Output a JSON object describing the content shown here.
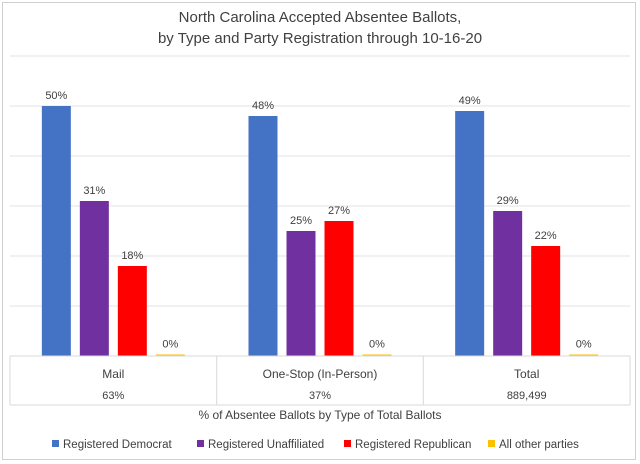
{
  "chart_data": {
    "type": "bar",
    "title": [
      "North Carolina Accepted Absentee Ballots,",
      "by Type and Party Registration through 10-16-20"
    ],
    "categories": [
      "Mail",
      "One-Stop (In-Person)",
      "Total"
    ],
    "category_sublabels": [
      "63%",
      "37%",
      "889,499"
    ],
    "xlabel": "% of Absentee Ballots by Type of Total Ballots",
    "ylabel": "",
    "ylim": [
      0,
      60
    ],
    "grid": true,
    "legend_position": "bottom",
    "series": [
      {
        "name": "Registered Democrat",
        "color": "#4472C4",
        "values": [
          50,
          48,
          49
        ],
        "labels": [
          "50%",
          "48%",
          "49%"
        ]
      },
      {
        "name": "Registered Unaffiliated",
        "color": "#7030A0",
        "values": [
          31,
          25,
          29
        ],
        "labels": [
          "31%",
          "25%",
          "29%"
        ]
      },
      {
        "name": "Registered Republican",
        "color": "#FF0000",
        "values": [
          18,
          27,
          22
        ],
        "labels": [
          "18%",
          "27%",
          "22%"
        ]
      },
      {
        "name": "All other parties",
        "color": "#FFC000",
        "values": [
          0.3,
          0.3,
          0.3
        ],
        "labels": [
          "0%",
          "0%",
          "0%"
        ]
      }
    ]
  }
}
